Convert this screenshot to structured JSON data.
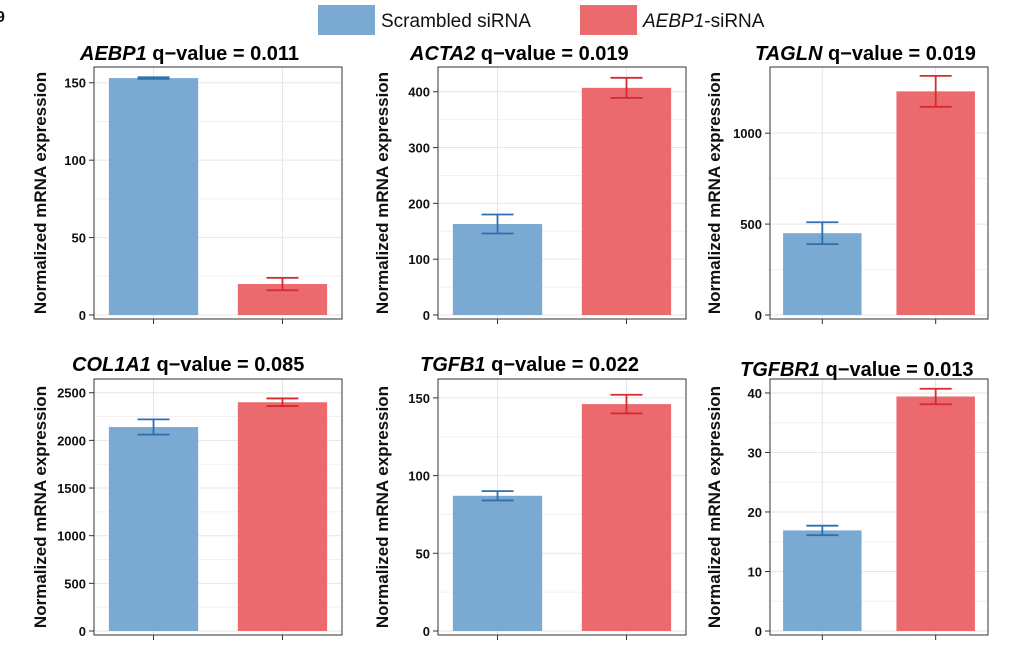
{
  "legend": {
    "items": [
      {
        "label_plain": "Scrambled siRNA",
        "label_italic": "",
        "label_suffix": "",
        "color": "#7aa9d2"
      },
      {
        "label_plain": "",
        "label_italic": "AEBP1",
        "label_suffix": "-siRNA",
        "color": "#ea6a6e"
      }
    ]
  },
  "colors": {
    "scrambled_fill": "#7aa9d2",
    "aebp1_fill": "#ea6a6e",
    "scrambled_err": "#2e6fb0",
    "aebp1_err": "#d42a30",
    "grid": "#e6e6e6",
    "frame": "#333333"
  },
  "corner_mark": "9",
  "chart_data": [
    {
      "type": "bar",
      "gene": "AEBP1",
      "title_suffix": "q−value = 0.011",
      "ylabel": "Normalized mRNA expression",
      "ylim": [
        0,
        155
      ],
      "yticks": [
        0,
        50,
        100,
        150
      ],
      "tick_labels": [
        "0",
        "50",
        "100",
        "150"
      ],
      "categories": [
        "Scrambled siRNA",
        "AEBP1-siRNA"
      ],
      "values": [
        153,
        20
      ],
      "errors": [
        0.5,
        4
      ]
    },
    {
      "type": "bar",
      "gene": "ACTA2",
      "title_suffix": "q−value = 0.019",
      "ylabel": "Normalized mRNA expression",
      "ylim": [
        0,
        430
      ],
      "yticks": [
        0,
        100,
        200,
        300,
        400
      ],
      "tick_labels": [
        "0",
        "100",
        "200",
        "300",
        "400"
      ],
      "categories": [
        "Scrambled siRNA",
        "AEBP1-siRNA"
      ],
      "values": [
        163,
        407
      ],
      "errors": [
        17,
        18
      ]
    },
    {
      "type": "bar",
      "gene": "TAGLN",
      "title_suffix": "q−value = 0.019",
      "ylabel": "Normalized mRNA expression",
      "ylim": [
        0,
        1320
      ],
      "yticks": [
        0,
        500,
        1000
      ],
      "tick_labels": [
        "0",
        "500",
        "1000"
      ],
      "categories": [
        "Scrambled siRNA",
        "AEBP1-siRNA"
      ],
      "values": [
        450,
        1230
      ],
      "errors": [
        60,
        85
      ]
    },
    {
      "type": "bar",
      "gene": "COL1A1",
      "title_suffix": "q−value = 0.085",
      "ylabel": "Normalized mRNA expression",
      "ylim": [
        0,
        2560
      ],
      "yticks": [
        0,
        500,
        1000,
        1500,
        2000,
        2500
      ],
      "tick_labels": [
        "0",
        "500",
        "1000",
        "1500",
        "2000",
        "2500"
      ],
      "categories": [
        "Scrambled siRNA",
        "AEBP1-siRNA"
      ],
      "values": [
        2140,
        2400
      ],
      "errors": [
        80,
        40
      ]
    },
    {
      "type": "bar",
      "gene": "TGFB1",
      "title_suffix": "q−value = 0.022",
      "ylabel": "Normalized mRNA expression",
      "ylim": [
        0,
        157
      ],
      "yticks": [
        0,
        50,
        100,
        150
      ],
      "tick_labels": [
        "0",
        "50",
        "100",
        "150"
      ],
      "categories": [
        "Scrambled siRNA",
        "AEBP1-siRNA"
      ],
      "values": [
        87,
        146
      ],
      "errors": [
        3,
        6
      ]
    },
    {
      "type": "bar",
      "gene": "TGFBR1",
      "title_suffix": "q−value = 0.013",
      "ylabel": "Normalized mRNA expression",
      "ylim": [
        0,
        41
      ],
      "yticks": [
        0,
        10,
        20,
        30,
        40
      ],
      "tick_labels": [
        "0",
        "10",
        "20",
        "30",
        "40"
      ],
      "categories": [
        "Scrambled siRNA",
        "AEBP1-siRNA"
      ],
      "values": [
        16.9,
        39.4
      ],
      "errors": [
        0.8,
        1.3
      ]
    }
  ]
}
